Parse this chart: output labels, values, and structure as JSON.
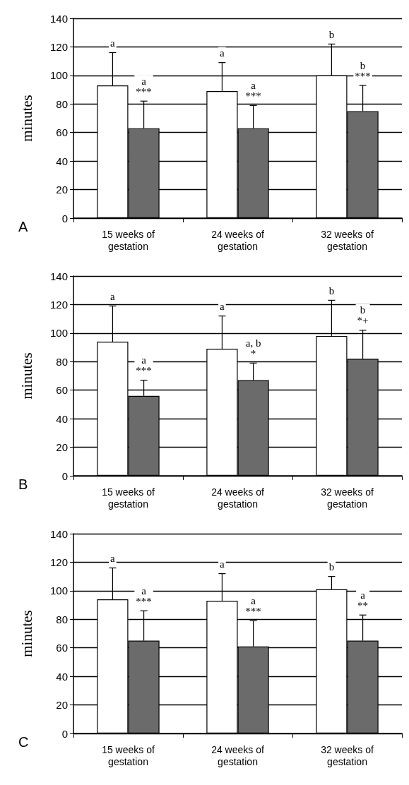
{
  "chart_data": [
    {
      "type": "bar",
      "ylabel": "minutes",
      "categories": [
        "15 weeks of gestation",
        "24 weeks of gestation",
        "32 weeks of gestation"
      ],
      "series": [
        {
          "color": "#ffffff",
          "values": [
            93,
            89,
            100
          ],
          "errors": [
            [
              93,
              116
            ],
            [
              89,
              109
            ],
            [
              100,
              122
            ]
          ]
        },
        {
          "color": "#6b6b6b",
          "values": [
            63,
            63,
            75
          ],
          "errors": [
            [
              63,
              82
            ],
            [
              63,
              79
            ],
            [
              75,
              93
            ]
          ]
        }
      ],
      "ylim": [
        0,
        140
      ],
      "yticks": [
        0,
        20,
        40,
        60,
        80,
        100,
        120,
        140
      ],
      "grid": "y",
      "annotations": [
        "A",
        "a",
        "a\n***",
        "a",
        "a\n***",
        "b",
        "b\n***"
      ]
    },
    {
      "type": "bar",
      "ylabel": "minutes",
      "categories": [
        "15 weeks of gestation",
        "24 weeks of gestation",
        "32 weeks of gestation"
      ],
      "series": [
        {
          "color": "#ffffff",
          "values": [
            94,
            89,
            98
          ],
          "errors": [
            [
              94,
              119
            ],
            [
              89,
              112
            ],
            [
              98,
              123
            ]
          ]
        },
        {
          "color": "#6b6b6b",
          "values": [
            56,
            67,
            82
          ],
          "errors": [
            [
              56,
              67
            ],
            [
              67,
              79
            ],
            [
              82,
              102
            ]
          ]
        }
      ],
      "ylim": [
        0,
        140
      ],
      "yticks": [
        0,
        20,
        40,
        60,
        80,
        100,
        120,
        140
      ],
      "grid": "y",
      "annotations": [
        "B",
        "a",
        "a\n***",
        "a",
        "a, b\n*",
        "b",
        "b\n*+"
      ]
    },
    {
      "type": "bar",
      "ylabel": "minutes",
      "categories": [
        "15 weeks of gestation",
        "24 weeks of gestation",
        "32 weeks of gestation"
      ],
      "series": [
        {
          "color": "#ffffff",
          "values": [
            94,
            93,
            101
          ],
          "errors": [
            [
              94,
              116
            ],
            [
              93,
              112
            ],
            [
              101,
              110
            ]
          ]
        },
        {
          "color": "#6b6b6b",
          "values": [
            65,
            61,
            65
          ],
          "errors": [
            [
              65,
              86
            ],
            [
              61,
              79
            ],
            [
              65,
              83
            ]
          ]
        }
      ],
      "ylim": [
        0,
        140
      ],
      "yticks": [
        0,
        20,
        40,
        60,
        80,
        100,
        120,
        140
      ],
      "grid": "y",
      "annotations": [
        "C",
        "a",
        "a\n***",
        "a",
        "a\n***",
        "b",
        "a\n**"
      ]
    }
  ]
}
